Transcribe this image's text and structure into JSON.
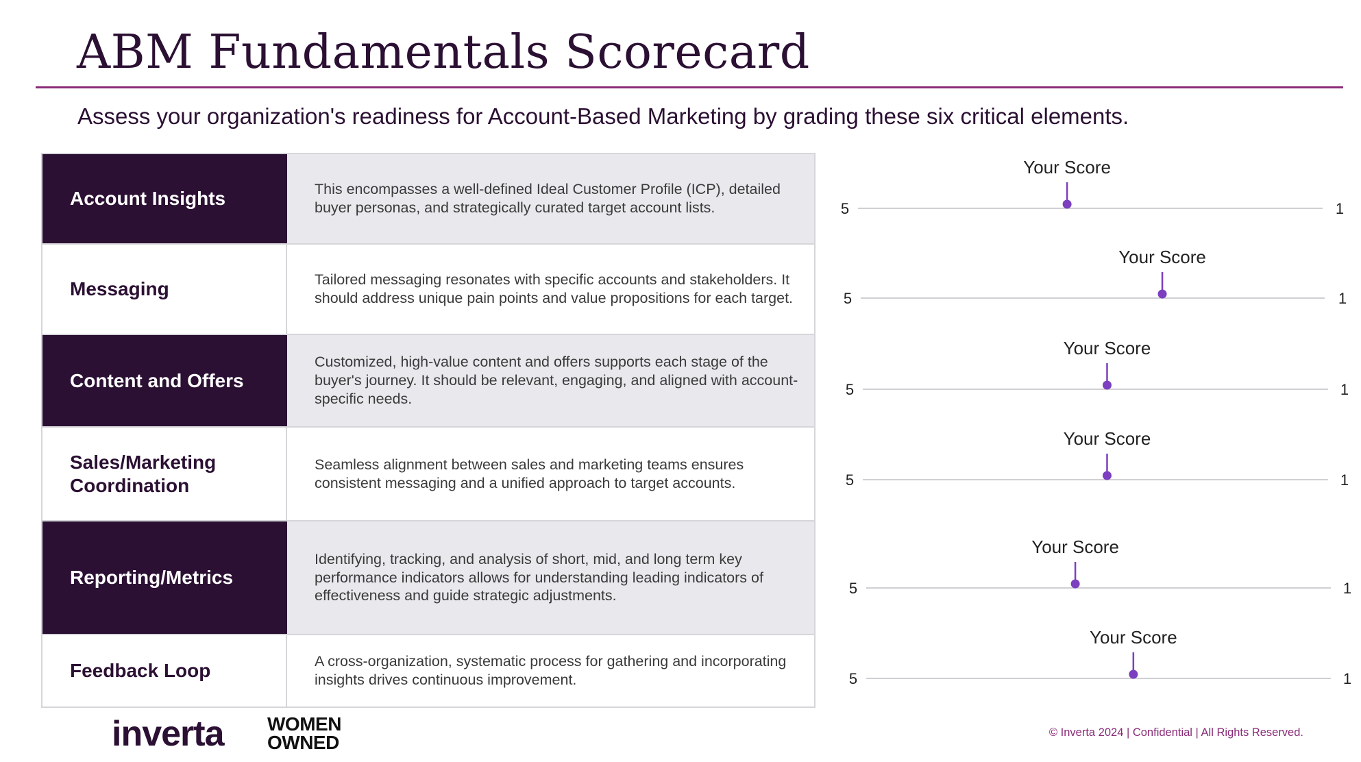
{
  "header": {
    "title": "ABM Fundamentals Scorecard",
    "subtitle": "Assess your organization's readiness for Account-Based Marketing by grading these six critical elements."
  },
  "table": {
    "rows": [
      {
        "label": "Account Insights",
        "description": "This encompasses a well-defined Ideal Customer Profile (ICP), detailed buyer personas, and strategically curated target account lists."
      },
      {
        "label": "Messaging",
        "description": "Tailored messaging resonates with specific accounts and stakeholders. It should address unique pain points and value propositions for each target."
      },
      {
        "label": "Content and Offers",
        "description": "Customized, high-value content and offers supports each stage of the buyer's journey. It should be relevant, engaging, and aligned with account-specific needs."
      },
      {
        "label": "Sales/Marketing Coordination",
        "description": "Seamless alignment between sales and marketing teams ensures consistent messaging and a unified approach to target accounts."
      },
      {
        "label": "Reporting/Metrics",
        "description": "Identifying, tracking, and analysis of short, mid, and long term key performance indicators allows for understanding leading indicators of effectiveness and guide strategic adjustments."
      },
      {
        "label": "Feedback Loop",
        "description": "A cross-organization, systematic process for gathering and incorporating insights drives continuous improvement."
      }
    ]
  },
  "chart_data": {
    "type": "scatter",
    "xlim": [
      5,
      1
    ],
    "marker_label": "Your Score",
    "color": "#7b3fbf",
    "tracks": [
      {
        "left": "5",
        "right": "1",
        "value": 3.2
      },
      {
        "left": "5",
        "right": "1",
        "value": 2.4
      },
      {
        "left": "5",
        "right": "1",
        "value": 2.9
      },
      {
        "left": "5",
        "right": "1",
        "value": 2.9
      },
      {
        "left": "5",
        "right": "1",
        "value": 3.2
      },
      {
        "left": "5",
        "right": "1",
        "value": 2.7
      }
    ]
  },
  "footer": {
    "logo_inverta": "inverta",
    "logo_women_owned": [
      "WOMEN",
      "OWNED"
    ],
    "copyright": "© Inverta 2024 | Confidential | All Rights Reserved."
  },
  "colors": {
    "brand_dark": "#2b1033",
    "accent_rule": "#8a2a78",
    "shaded_row": "#e9e8ec",
    "marker": "#7b3fbf",
    "track": "#cfcfd4"
  }
}
